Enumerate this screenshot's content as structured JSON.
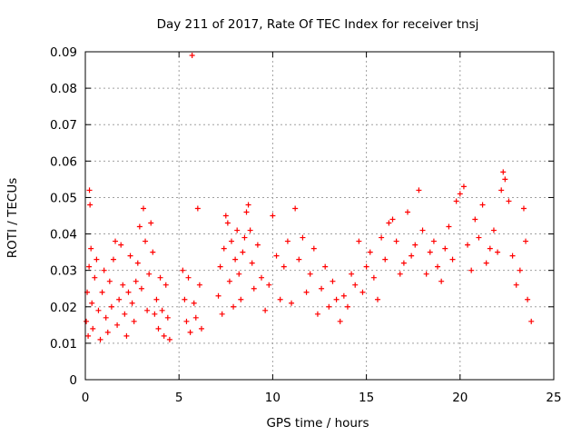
{
  "chart_data": {
    "type": "scatter",
    "title": "Day 211 of 2017, Rate Of TEC Index for receiver tnsj",
    "xlabel": "GPS time / hours",
    "ylabel": "ROTI / TECUs",
    "xlim": [
      0,
      25
    ],
    "ylim": [
      0,
      0.09
    ],
    "xticks": [
      "0",
      "5",
      "10",
      "15",
      "20",
      "25"
    ],
    "yticks": [
      "0",
      "0.01",
      "0.02",
      "0.03",
      "0.04",
      "0.05",
      "0.06",
      "0.07",
      "0.08",
      "0.09"
    ],
    "grid": true,
    "marker": "plus",
    "color": "#ff0000",
    "series": [
      {
        "points": [
          [
            0.05,
            0.016
          ],
          [
            0.1,
            0.024
          ],
          [
            0.15,
            0.012
          ],
          [
            0.2,
            0.031
          ],
          [
            0.22,
            0.052
          ],
          [
            0.25,
            0.048
          ],
          [
            0.3,
            0.036
          ],
          [
            0.35,
            0.021
          ],
          [
            0.4,
            0.014
          ],
          [
            0.5,
            0.028
          ],
          [
            0.6,
            0.033
          ],
          [
            0.7,
            0.019
          ],
          [
            0.8,
            0.011
          ],
          [
            0.9,
            0.024
          ],
          [
            1.0,
            0.03
          ],
          [
            1.1,
            0.017
          ],
          [
            1.2,
            0.013
          ],
          [
            1.3,
            0.027
          ],
          [
            1.4,
            0.02
          ],
          [
            1.5,
            0.033
          ],
          [
            1.6,
            0.038
          ],
          [
            1.7,
            0.015
          ],
          [
            1.8,
            0.022
          ],
          [
            1.9,
            0.037
          ],
          [
            2.0,
            0.026
          ],
          [
            2.1,
            0.018
          ],
          [
            2.2,
            0.012
          ],
          [
            2.3,
            0.024
          ],
          [
            2.4,
            0.034
          ],
          [
            2.5,
            0.021
          ],
          [
            2.6,
            0.016
          ],
          [
            2.7,
            0.027
          ],
          [
            2.8,
            0.032
          ],
          [
            2.9,
            0.042
          ],
          [
            3.0,
            0.025
          ],
          [
            3.1,
            0.047
          ],
          [
            3.2,
            0.038
          ],
          [
            3.3,
            0.019
          ],
          [
            3.4,
            0.029
          ],
          [
            3.5,
            0.043
          ],
          [
            3.6,
            0.035
          ],
          [
            3.7,
            0.018
          ],
          [
            3.8,
            0.022
          ],
          [
            3.9,
            0.014
          ],
          [
            4.0,
            0.028
          ],
          [
            4.1,
            0.019
          ],
          [
            4.2,
            0.012
          ],
          [
            4.3,
            0.026
          ],
          [
            4.4,
            0.017
          ],
          [
            4.5,
            0.011
          ],
          [
            5.2,
            0.03
          ],
          [
            5.3,
            0.022
          ],
          [
            5.4,
            0.016
          ],
          [
            5.5,
            0.028
          ],
          [
            5.6,
            0.013
          ],
          [
            5.7,
            0.089
          ],
          [
            5.8,
            0.021
          ],
          [
            5.9,
            0.017
          ],
          [
            6.0,
            0.047
          ],
          [
            6.1,
            0.026
          ],
          [
            6.2,
            0.014
          ],
          [
            7.1,
            0.023
          ],
          [
            7.2,
            0.031
          ],
          [
            7.3,
            0.018
          ],
          [
            7.4,
            0.036
          ],
          [
            7.5,
            0.045
          ],
          [
            7.6,
            0.043
          ],
          [
            7.7,
            0.027
          ],
          [
            7.8,
            0.038
          ],
          [
            7.9,
            0.02
          ],
          [
            8.0,
            0.033
          ],
          [
            8.1,
            0.041
          ],
          [
            8.2,
            0.029
          ],
          [
            8.3,
            0.022
          ],
          [
            8.4,
            0.035
          ],
          [
            8.5,
            0.039
          ],
          [
            8.6,
            0.046
          ],
          [
            8.7,
            0.048
          ],
          [
            8.8,
            0.041
          ],
          [
            8.9,
            0.032
          ],
          [
            9.0,
            0.025
          ],
          [
            9.2,
            0.037
          ],
          [
            9.4,
            0.028
          ],
          [
            9.6,
            0.019
          ],
          [
            9.8,
            0.026
          ],
          [
            10.0,
            0.045
          ],
          [
            10.2,
            0.034
          ],
          [
            10.4,
            0.022
          ],
          [
            10.6,
            0.031
          ],
          [
            10.8,
            0.038
          ],
          [
            11.0,
            0.021
          ],
          [
            11.2,
            0.047
          ],
          [
            11.4,
            0.033
          ],
          [
            11.6,
            0.039
          ],
          [
            11.8,
            0.024
          ],
          [
            12.0,
            0.029
          ],
          [
            12.2,
            0.036
          ],
          [
            12.4,
            0.018
          ],
          [
            12.6,
            0.025
          ],
          [
            12.8,
            0.031
          ],
          [
            13.0,
            0.02
          ],
          [
            13.2,
            0.027
          ],
          [
            13.4,
            0.022
          ],
          [
            13.6,
            0.016
          ],
          [
            13.8,
            0.023
          ],
          [
            14.0,
            0.02
          ],
          [
            14.2,
            0.029
          ],
          [
            14.4,
            0.026
          ],
          [
            14.6,
            0.038
          ],
          [
            14.8,
            0.024
          ],
          [
            15.0,
            0.031
          ],
          [
            15.2,
            0.035
          ],
          [
            15.4,
            0.028
          ],
          [
            15.6,
            0.022
          ],
          [
            15.8,
            0.039
          ],
          [
            16.0,
            0.033
          ],
          [
            16.2,
            0.043
          ],
          [
            16.4,
            0.044
          ],
          [
            16.6,
            0.038
          ],
          [
            16.8,
            0.029
          ],
          [
            17.0,
            0.032
          ],
          [
            17.2,
            0.046
          ],
          [
            17.4,
            0.034
          ],
          [
            17.6,
            0.037
          ],
          [
            17.8,
            0.052
          ],
          [
            18.0,
            0.041
          ],
          [
            18.2,
            0.029
          ],
          [
            18.4,
            0.035
          ],
          [
            18.6,
            0.038
          ],
          [
            18.8,
            0.031
          ],
          [
            19.0,
            0.027
          ],
          [
            19.2,
            0.036
          ],
          [
            19.4,
            0.042
          ],
          [
            19.6,
            0.033
          ],
          [
            19.8,
            0.049
          ],
          [
            20.0,
            0.051
          ],
          [
            20.2,
            0.053
          ],
          [
            20.4,
            0.037
          ],
          [
            20.6,
            0.03
          ],
          [
            20.8,
            0.044
          ],
          [
            21.0,
            0.039
          ],
          [
            21.2,
            0.048
          ],
          [
            21.4,
            0.032
          ],
          [
            21.6,
            0.036
          ],
          [
            21.8,
            0.041
          ],
          [
            22.0,
            0.035
          ],
          [
            22.2,
            0.052
          ],
          [
            22.3,
            0.057
          ],
          [
            22.4,
            0.055
          ],
          [
            22.6,
            0.049
          ],
          [
            22.8,
            0.034
          ],
          [
            23.0,
            0.026
          ],
          [
            23.2,
            0.03
          ],
          [
            23.4,
            0.047
          ],
          [
            23.5,
            0.038
          ],
          [
            23.6,
            0.022
          ],
          [
            23.8,
            0.016
          ]
        ]
      }
    ]
  }
}
